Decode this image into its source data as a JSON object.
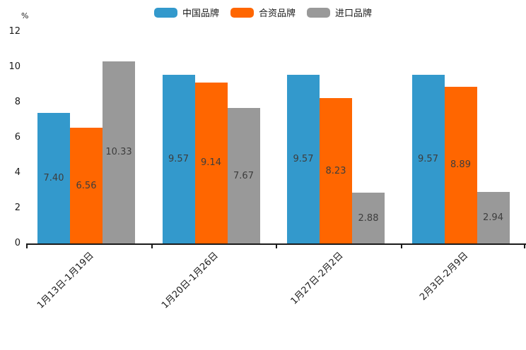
{
  "chart_data": {
    "type": "bar",
    "title": "",
    "xlabel": "",
    "ylabel": "%",
    "categories": [
      "1月13日-1月19日",
      "1月20日-1月26日",
      "1月27日-2月2日",
      "2月3日-2月9日"
    ],
    "series": [
      {
        "name": "中国品牌",
        "color": "#3399CC",
        "values": [
          7.4,
          9.57,
          9.57,
          9.57
        ]
      },
      {
        "name": "合资品牌",
        "color": "#FF6600",
        "values": [
          6.56,
          9.14,
          8.23,
          8.89
        ]
      },
      {
        "name": "进口品牌",
        "color": "#999999",
        "values": [
          10.33,
          7.67,
          2.88,
          2.94
        ]
      }
    ],
    "value_labels": [
      [
        "7.40",
        "9.57",
        "9.57",
        "9.57"
      ],
      [
        "6.56",
        "9.14",
        "8.23",
        "8.89"
      ],
      [
        "10.33",
        "7.67",
        "2.88",
        "2.94"
      ]
    ],
    "ylim": [
      0,
      12
    ],
    "yticks": [
      0,
      2,
      4,
      6,
      8,
      10,
      12
    ],
    "grid": false,
    "legend_position": "top"
  },
  "colors": {
    "background": "#ffffff",
    "axis": "#1a1a1a",
    "value_label": "#3d3d3d"
  }
}
